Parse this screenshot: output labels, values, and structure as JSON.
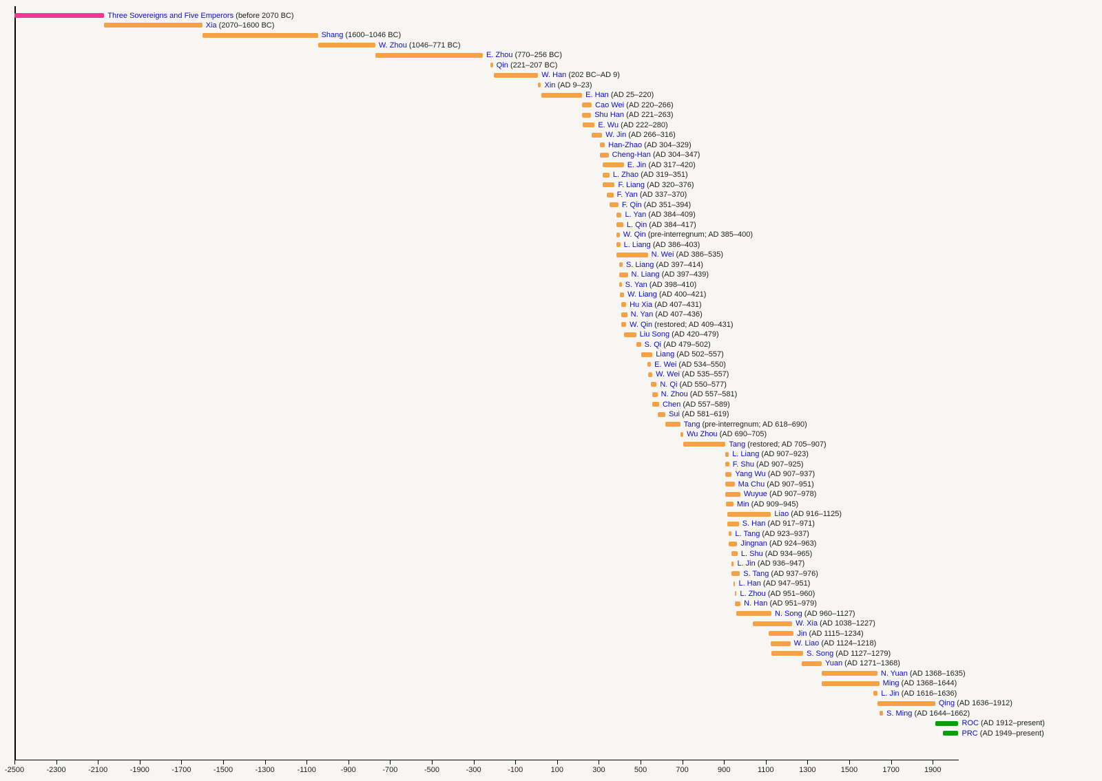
{
  "chart_data": {
    "type": "bar",
    "subtype": "horizontal-timeline-gantt",
    "title": "",
    "xlabel": "",
    "ylabel": "",
    "legend": "none",
    "grid": false,
    "x_axis": {
      "min": -2500,
      "max": 2023,
      "tick_step": 200,
      "ticks": [
        -2500,
        -2300,
        -2100,
        -1900,
        -1700,
        -1500,
        -1300,
        -1100,
        -900,
        -700,
        -500,
        -300,
        -100,
        100,
        300,
        500,
        700,
        900,
        1100,
        1300,
        1500,
        1700,
        1900
      ]
    },
    "colors": {
      "legendary": "#ef3a92",
      "dynasty": "#f6a145",
      "modern": "#0a9e0a",
      "name_text": "#0b0bcc",
      "detail_text": "#1c1c1c",
      "axis": "#000000",
      "background": "#f7f6f2"
    },
    "rows": [
      {
        "name": "Three Sovereigns and Five Emperors",
        "detail": "(before 2070 BC)",
        "start": -2500,
        "end": -2070,
        "color": "legendary"
      },
      {
        "name": "Xia",
        "detail": "(2070–1600 BC)",
        "start": -2070,
        "end": -1600
      },
      {
        "name": "Shang",
        "detail": "(1600–1046 BC)",
        "start": -1600,
        "end": -1046
      },
      {
        "name": "W. Zhou",
        "detail": "(1046–771 BC)",
        "start": -1046,
        "end": -771
      },
      {
        "name": "E. Zhou",
        "detail": "(770–256 BC)",
        "start": -770,
        "end": -256
      },
      {
        "name": "Qin",
        "detail": "(221–207 BC)",
        "start": -221,
        "end": -207
      },
      {
        "name": "W. Han",
        "detail": "(202 BC–AD 9)",
        "start": -202,
        "end": 9
      },
      {
        "name": "Xin",
        "detail": "(AD 9–23)",
        "start": 9,
        "end": 23
      },
      {
        "name": "E. Han",
        "detail": "(AD 25–220)",
        "start": 25,
        "end": 220
      },
      {
        "name": "Cao Wei",
        "detail": "(AD 220–266)",
        "start": 220,
        "end": 266
      },
      {
        "name": "Shu Han",
        "detail": "(AD 221–263)",
        "start": 221,
        "end": 263
      },
      {
        "name": "E. Wu",
        "detail": "(AD 222–280)",
        "start": 222,
        "end": 280
      },
      {
        "name": "W. Jin",
        "detail": "(AD 266–316)",
        "start": 266,
        "end": 316
      },
      {
        "name": "Han-Zhao",
        "detail": "(AD 304–329)",
        "start": 304,
        "end": 329
      },
      {
        "name": "Cheng-Han",
        "detail": "(AD 304–347)",
        "start": 304,
        "end": 347
      },
      {
        "name": "E. Jin",
        "detail": "(AD 317–420)",
        "start": 317,
        "end": 420
      },
      {
        "name": "L. Zhao",
        "detail": "(AD 319–351)",
        "start": 319,
        "end": 351
      },
      {
        "name": "F. Liang",
        "detail": "(AD 320–376)",
        "start": 320,
        "end": 376
      },
      {
        "name": "F. Yan",
        "detail": "(AD 337–370)",
        "start": 337,
        "end": 370
      },
      {
        "name": "F. Qin",
        "detail": "(AD 351–394)",
        "start": 351,
        "end": 394
      },
      {
        "name": "L. Yan",
        "detail": "(AD 384–409)",
        "start": 384,
        "end": 409
      },
      {
        "name": "L. Qin",
        "detail": "(AD 384–417)",
        "start": 384,
        "end": 417
      },
      {
        "name": "W. Qin",
        "detail": "(pre-interregnum; AD 385–400)",
        "start": 385,
        "end": 400
      },
      {
        "name": "L. Liang",
        "detail": "(AD 386–403)",
        "start": 386,
        "end": 403
      },
      {
        "name": "N. Wei",
        "detail": "(AD 386–535)",
        "start": 386,
        "end": 535
      },
      {
        "name": "S. Liang",
        "detail": "(AD 397–414)",
        "start": 397,
        "end": 414
      },
      {
        "name": "N. Liang",
        "detail": "(AD 397–439)",
        "start": 397,
        "end": 439
      },
      {
        "name": "S. Yan",
        "detail": "(AD 398–410)",
        "start": 398,
        "end": 410
      },
      {
        "name": "W. Liang",
        "detail": "(AD 400–421)",
        "start": 400,
        "end": 421
      },
      {
        "name": "Hu Xia",
        "detail": "(AD 407–431)",
        "start": 407,
        "end": 431
      },
      {
        "name": "N. Yan",
        "detail": "(AD 407–436)",
        "start": 407,
        "end": 436
      },
      {
        "name": "W. Qin",
        "detail": "(restored; AD 409–431)",
        "start": 409,
        "end": 431
      },
      {
        "name": "Liu Song",
        "detail": "(AD 420–479)",
        "start": 420,
        "end": 479
      },
      {
        "name": "S. Qi",
        "detail": "(AD 479–502)",
        "start": 479,
        "end": 502
      },
      {
        "name": "Liang",
        "detail": "(AD 502–557)",
        "start": 502,
        "end": 557
      },
      {
        "name": "E. Wei",
        "detail": "(AD 534–550)",
        "start": 534,
        "end": 550
      },
      {
        "name": "W. Wei",
        "detail": "(AD 535–557)",
        "start": 535,
        "end": 557
      },
      {
        "name": "N. Qi",
        "detail": "(AD 550–577)",
        "start": 550,
        "end": 577
      },
      {
        "name": "N. Zhou",
        "detail": "(AD 557–581)",
        "start": 557,
        "end": 581
      },
      {
        "name": "Chen",
        "detail": "(AD 557–589)",
        "start": 557,
        "end": 589
      },
      {
        "name": "Sui",
        "detail": "(AD 581–619)",
        "start": 581,
        "end": 619
      },
      {
        "name": "Tang",
        "detail": "(pre-interregnum; AD 618–690)",
        "start": 618,
        "end": 690
      },
      {
        "name": "Wu Zhou",
        "detail": "(AD 690–705)",
        "start": 690,
        "end": 705
      },
      {
        "name": "Tang",
        "detail": "(restored; AD 705–907)",
        "start": 705,
        "end": 907
      },
      {
        "name": "L. Liang",
        "detail": "(AD 907–923)",
        "start": 907,
        "end": 923
      },
      {
        "name": "F. Shu",
        "detail": "(AD 907–925)",
        "start": 907,
        "end": 925
      },
      {
        "name": "Yang Wu",
        "detail": "(AD 907–937)",
        "start": 907,
        "end": 937
      },
      {
        "name": "Ma Chu",
        "detail": "(AD 907–951)",
        "start": 907,
        "end": 951
      },
      {
        "name": "Wuyue",
        "detail": "(AD 907–978)",
        "start": 907,
        "end": 978
      },
      {
        "name": "Min",
        "detail": "(AD 909–945)",
        "start": 909,
        "end": 945
      },
      {
        "name": "Liao",
        "detail": "(AD 916–1125)",
        "start": 916,
        "end": 1125
      },
      {
        "name": "S. Han",
        "detail": "(AD 917–971)",
        "start": 917,
        "end": 971
      },
      {
        "name": "L. Tang",
        "detail": "(AD 923–937)",
        "start": 923,
        "end": 937
      },
      {
        "name": "Jingnan",
        "detail": "(AD 924–963)",
        "start": 924,
        "end": 963
      },
      {
        "name": "L. Shu",
        "detail": "(AD 934–965)",
        "start": 934,
        "end": 965
      },
      {
        "name": "L. Jin",
        "detail": "(AD 936–947)",
        "start": 936,
        "end": 947
      },
      {
        "name": "S. Tang",
        "detail": "(AD 937–976)",
        "start": 937,
        "end": 976
      },
      {
        "name": "L. Han",
        "detail": "(AD 947–951)",
        "start": 947,
        "end": 951
      },
      {
        "name": "L. Zhou",
        "detail": "(AD 951–960)",
        "start": 951,
        "end": 960
      },
      {
        "name": "N. Han",
        "detail": "(AD 951–979)",
        "start": 951,
        "end": 979
      },
      {
        "name": "N. Song",
        "detail": "(AD 960–1127)",
        "start": 960,
        "end": 1127
      },
      {
        "name": "W. Xia",
        "detail": "(AD 1038–1227)",
        "start": 1038,
        "end": 1227
      },
      {
        "name": "Jin",
        "detail": "(AD 1115–1234)",
        "start": 1115,
        "end": 1234
      },
      {
        "name": "W. Liao",
        "detail": "(AD 1124–1218)",
        "start": 1124,
        "end": 1218
      },
      {
        "name": "S. Song",
        "detail": "(AD 1127–1279)",
        "start": 1127,
        "end": 1279
      },
      {
        "name": "Yuan",
        "detail": "(AD 1271–1368)",
        "start": 1271,
        "end": 1368
      },
      {
        "name": "N. Yuan",
        "detail": "(AD 1368–1635)",
        "start": 1368,
        "end": 1635
      },
      {
        "name": "Ming",
        "detail": "(AD 1368–1644)",
        "start": 1368,
        "end": 1644
      },
      {
        "name": "L. Jin",
        "detail": "(AD 1616–1636)",
        "start": 1616,
        "end": 1636
      },
      {
        "name": "Qing",
        "detail": "(AD 1636–1912)",
        "start": 1636,
        "end": 1912
      },
      {
        "name": "S. Ming",
        "detail": "(AD 1644–1662)",
        "start": 1644,
        "end": 1662
      },
      {
        "name": "ROC",
        "detail": "(AD 1912–present)",
        "start": 1912,
        "end": 2023,
        "color": "modern"
      },
      {
        "name": "PRC",
        "detail": "(AD 1949–present)",
        "start": 1949,
        "end": 2023,
        "color": "modern"
      }
    ]
  }
}
